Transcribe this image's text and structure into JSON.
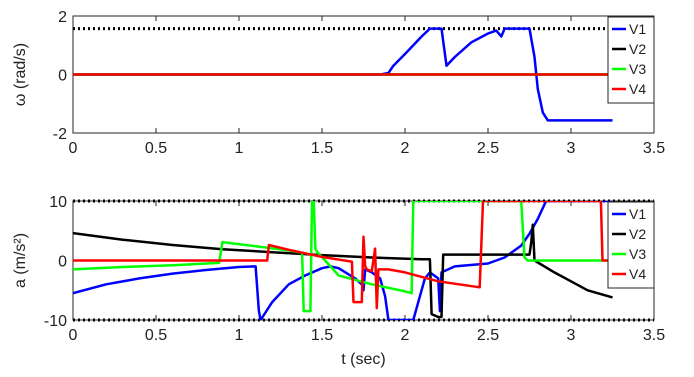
{
  "chart_data": [
    {
      "type": "line",
      "ylabel": "ω (rad/s)",
      "xlabel": "",
      "xlim": [
        0,
        3.5
      ],
      "ylim": [
        -2,
        2
      ],
      "xticks": [
        0,
        0.5,
        1,
        1.5,
        2,
        2.5,
        3,
        3.5
      ],
      "xtick_labels": [
        "0",
        "0.5",
        "1",
        "1.5",
        "2",
        "2.5",
        "3",
        "3.5"
      ],
      "yticks": [
        -2,
        0,
        2
      ],
      "ytick_labels": [
        "-2",
        "0",
        "2"
      ],
      "grid": false,
      "legend_position": "right",
      "limits": [
        1.57
      ],
      "series": [
        {
          "name": "V1",
          "color": "#0000ff",
          "x": [
            0,
            1.85,
            1.9,
            1.93,
            2.0,
            2.1,
            2.15,
            2.2,
            2.22,
            2.25,
            2.3,
            2.4,
            2.5,
            2.55,
            2.58,
            2.6,
            2.62,
            2.7,
            2.75,
            2.78,
            2.8,
            2.83,
            2.86,
            2.9,
            3.0,
            3.1,
            3.25
          ],
          "y": [
            0,
            0,
            0.05,
            0.3,
            0.7,
            1.3,
            1.57,
            1.57,
            1.57,
            0.3,
            0.6,
            1.1,
            1.4,
            1.5,
            1.3,
            1.57,
            1.57,
            1.57,
            1.57,
            0.6,
            -0.5,
            -1.3,
            -1.57,
            -1.57,
            -1.57,
            -1.57,
            -1.57
          ]
        },
        {
          "name": "V2",
          "color": "#000000",
          "x": [
            0,
            3.25
          ],
          "y": [
            0,
            0
          ]
        },
        {
          "name": "V3",
          "color": "#00ff00",
          "x": [
            0,
            3.25
          ],
          "y": [
            0,
            0
          ]
        },
        {
          "name": "V4",
          "color": "#ff0000",
          "x": [
            0,
            3.25
          ],
          "y": [
            0,
            0
          ]
        }
      ]
    },
    {
      "type": "line",
      "ylabel": "a (m/s²)",
      "xlabel": "t (sec)",
      "xlim": [
        0,
        3.5
      ],
      "ylim": [
        -10,
        10
      ],
      "xticks": [
        0,
        0.5,
        1,
        1.5,
        2,
        2.5,
        3,
        3.5
      ],
      "xtick_labels": [
        "0",
        "0.5",
        "1",
        "1.5",
        "2",
        "2.5",
        "3",
        "3.5"
      ],
      "yticks": [
        -10,
        0,
        10
      ],
      "ytick_labels": [
        "-10",
        "0",
        "10"
      ],
      "grid": false,
      "legend_position": "right",
      "limits": [
        10,
        -10
      ],
      "series": [
        {
          "name": "V1",
          "color": "#0000ff",
          "x": [
            0,
            0.2,
            0.4,
            0.6,
            0.8,
            1.0,
            1.1,
            1.12,
            1.13,
            1.2,
            1.3,
            1.4,
            1.5,
            1.55,
            1.6,
            1.7,
            1.74,
            1.75,
            1.76,
            1.8,
            1.85,
            1.88,
            1.9,
            2.0,
            2.05,
            2.07,
            2.12,
            2.15,
            2.2,
            2.21,
            2.22,
            2.3,
            2.5,
            2.6,
            2.7,
            2.75,
            2.8,
            2.85,
            3.0,
            3.25
          ],
          "y": [
            -5.5,
            -4.0,
            -3.0,
            -2.2,
            -1.6,
            -1.1,
            -1.0,
            -8.5,
            -10,
            -7.0,
            -4.0,
            -2.5,
            -1.3,
            -1.0,
            -1.3,
            -3.0,
            -4.0,
            -5.0,
            -1.5,
            -2.0,
            -3.0,
            -6.0,
            -10,
            -10,
            -10,
            -8.0,
            -3.0,
            -2.0,
            -3.0,
            -8.5,
            -2.0,
            -1.0,
            -0.5,
            0.5,
            2.5,
            4.5,
            7.0,
            10,
            10,
            10
          ]
        },
        {
          "name": "V2",
          "color": "#000000",
          "x": [
            0,
            0.3,
            0.6,
            0.9,
            1.2,
            1.5,
            1.8,
            2.1,
            2.15,
            2.16,
            2.2,
            2.21,
            2.22,
            2.23,
            2.4,
            2.6,
            2.75,
            2.76,
            2.77,
            2.78,
            2.9,
            3.0,
            3.1,
            3.25
          ],
          "y": [
            4.6,
            3.5,
            2.6,
            1.9,
            1.4,
            0.9,
            0.5,
            0.2,
            0.2,
            -9.0,
            -9.5,
            -9.5,
            -9.5,
            1.0,
            1.0,
            1.0,
            1.0,
            3.0,
            6.0,
            0.0,
            -2.0,
            -3.5,
            -5.0,
            -6.2
          ]
        },
        {
          "name": "V3",
          "color": "#00ff00",
          "x": [
            0,
            0.3,
            0.6,
            0.88,
            0.9,
            1.1,
            1.3,
            1.38,
            1.39,
            1.42,
            1.43,
            1.44,
            1.45,
            1.46,
            1.47,
            1.6,
            1.8,
            2.0,
            2.04,
            2.05,
            2.06,
            2.3,
            2.6,
            2.7,
            2.72,
            2.74,
            2.76,
            2.8,
            3.0,
            3.25
          ],
          "y": [
            -1.5,
            -1.1,
            -0.8,
            -0.4,
            3.1,
            2.4,
            1.7,
            1.3,
            -8.5,
            -8.5,
            -8.5,
            10,
            10,
            2.0,
            1.5,
            -2.5,
            -4.0,
            -5.2,
            -5.5,
            10,
            10,
            10,
            10,
            10,
            0.5,
            0,
            0,
            0,
            0,
            0
          ]
        },
        {
          "name": "V4",
          "color": "#ff0000",
          "x": [
            0,
            0.5,
            1.0,
            1.17,
            1.18,
            1.3,
            1.5,
            1.68,
            1.69,
            1.74,
            1.75,
            1.76,
            1.77,
            1.8,
            1.82,
            1.83,
            1.84,
            1.9,
            2.0,
            2.2,
            2.45,
            2.47,
            2.49,
            2.6,
            2.8,
            3.0,
            3.18,
            3.19,
            3.22,
            3.25
          ],
          "y": [
            0,
            0,
            0,
            0,
            2.6,
            1.8,
            0.6,
            -0.2,
            -7.0,
            -7.0,
            4.0,
            -1.0,
            -1.5,
            -1.8,
            2.0,
            -8.0,
            -1.5,
            -1.5,
            -2.0,
            -3.5,
            -4.5,
            10,
            10,
            10,
            10,
            10,
            10,
            0,
            0,
            0
          ]
        }
      ]
    }
  ]
}
